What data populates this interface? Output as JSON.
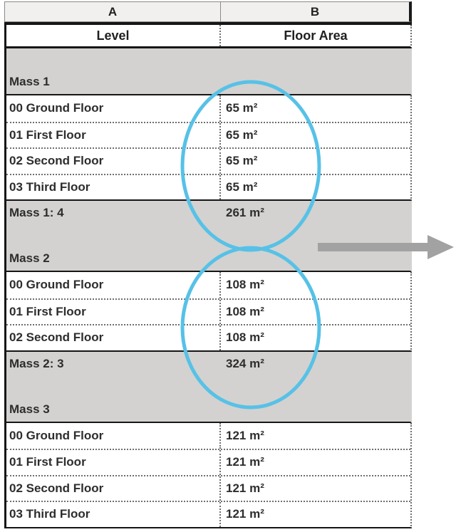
{
  "table": {
    "column_letters": [
      "A",
      "B"
    ],
    "headers": [
      "Level",
      "Floor Area"
    ],
    "groups": [
      {
        "name": "Mass 1",
        "rows": [
          [
            "00 Ground Floor",
            "65 m²"
          ],
          [
            "01 First Floor",
            "65 m²"
          ],
          [
            "02 Second Floor",
            "65 m²"
          ],
          [
            "03 Third Floor",
            "65 m²"
          ]
        ],
        "subtotal_label": "Mass 1: 4",
        "subtotal_value": "261 m²"
      },
      {
        "name": "Mass 2",
        "rows": [
          [
            "00 Ground Floor",
            "108 m²"
          ],
          [
            "01 First Floor",
            "108 m²"
          ],
          [
            "02 Second Floor",
            "108 m²"
          ]
        ],
        "subtotal_label": "Mass 2: 3",
        "subtotal_value": "324 m²"
      },
      {
        "name": "Mass 3",
        "rows": [
          [
            "00 Ground Floor",
            "121 m²"
          ],
          [
            "01 First Floor",
            "121 m²"
          ],
          [
            "02 Second Floor",
            "121 m²"
          ],
          [
            "03 Third Floor",
            "121 m²"
          ]
        ]
      }
    ]
  },
  "annotations": {
    "circle_color": "#57c1e7",
    "arrow_color": "#a3a2a2"
  }
}
